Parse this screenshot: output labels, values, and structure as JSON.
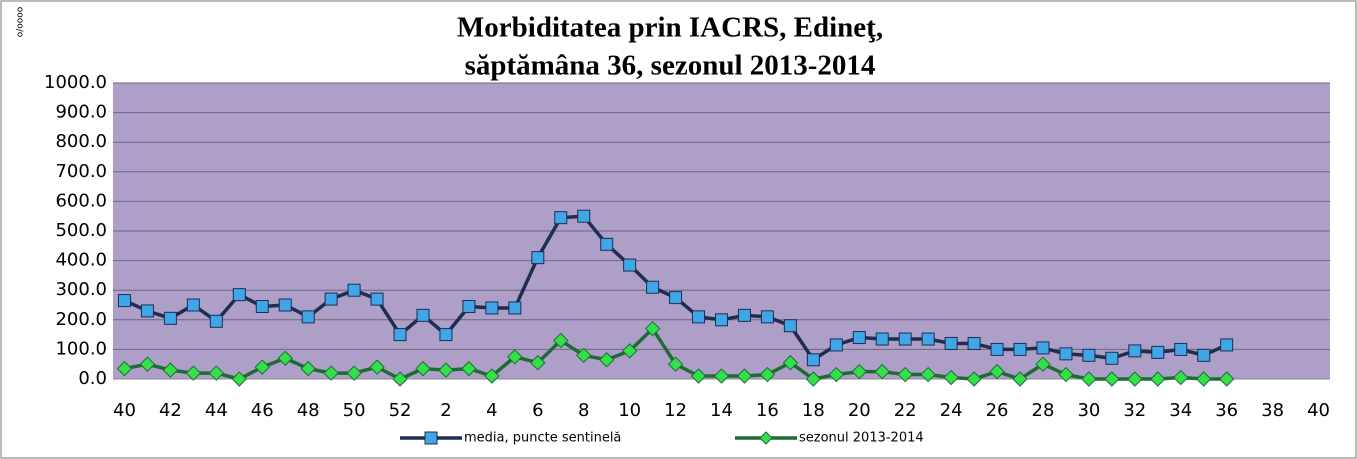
{
  "chart_data": {
    "type": "line",
    "title": "Morbiditatea prin IACRS, Edineţ,",
    "subtitle": "săptămâna 36, sezonul 2013-2014",
    "y_label": "o/oooo",
    "categories": [
      "40",
      null,
      "42",
      null,
      "44",
      null,
      "46",
      null,
      "48",
      null,
      "50",
      null,
      "52",
      null,
      "2",
      null,
      "4",
      null,
      "6",
      null,
      "8",
      null,
      "10",
      null,
      "12",
      null,
      "14",
      null,
      "16",
      null,
      "18",
      null,
      "20",
      null,
      "22",
      null,
      "24",
      null,
      "26",
      null,
      "28",
      null,
      "30",
      null,
      "32",
      null,
      "34",
      null,
      "36",
      null,
      "38",
      null,
      "40"
    ],
    "series": [
      {
        "name": "media, puncte sentinelă",
        "color": "#1f2d50",
        "marker_color": "#3fa6e8",
        "marker": "square",
        "values": [
          265,
          230,
          205,
          250,
          195,
          285,
          245,
          250,
          210,
          270,
          300,
          270,
          150,
          215,
          150,
          245,
          240,
          240,
          410,
          545,
          550,
          455,
          385,
          310,
          275,
          210,
          200,
          215,
          210,
          180,
          65,
          115,
          140,
          135,
          135,
          135,
          120,
          120,
          100,
          100,
          105,
          85,
          80,
          70,
          95,
          90,
          100,
          80,
          115,
          null,
          null,
          null,
          null
        ]
      },
      {
        "name": "sezonul 2013-2014",
        "color": "#1f6b35",
        "marker_color": "#33e04a",
        "marker": "diamond",
        "values": [
          35,
          50,
          30,
          20,
          20,
          0,
          40,
          70,
          35,
          20,
          20,
          40,
          0,
          35,
          30,
          35,
          10,
          75,
          55,
          130,
          80,
          65,
          95,
          170,
          50,
          10,
          10,
          10,
          15,
          55,
          0,
          15,
          25,
          25,
          15,
          15,
          5,
          0,
          25,
          0,
          50,
          15,
          0,
          0,
          0,
          0,
          5,
          0,
          0,
          null,
          null,
          null,
          null
        ]
      }
    ],
    "ylim": [
      0,
      1000
    ],
    "yticks": [
      {
        "value": 0,
        "label": "0.0"
      },
      {
        "value": 100,
        "label": "100.0"
      },
      {
        "value": 200,
        "label": "200.0"
      },
      {
        "value": 300,
        "label": "300.0"
      },
      {
        "value": 400,
        "label": "400.0"
      },
      {
        "value": 500,
        "label": "500.0"
      },
      {
        "value": 600,
        "label": "600.0"
      },
      {
        "value": 700,
        "label": "700.0"
      },
      {
        "value": 800,
        "label": "800.0"
      },
      {
        "value": 900,
        "label": "900.0"
      },
      {
        "value": 1000,
        "label": "1000.0"
      }
    ],
    "grid": true,
    "plot_background": "#ad9fc8",
    "legend": "bottom"
  }
}
